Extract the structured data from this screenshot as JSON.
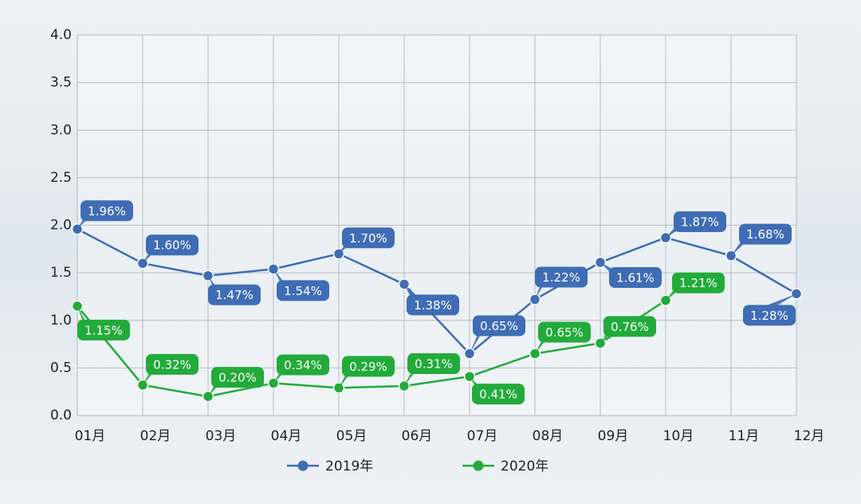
{
  "chart_data": {
    "type": "line",
    "categories": [
      "01月",
      "02月",
      "03月",
      "04月",
      "05月",
      "06月",
      "07月",
      "08月",
      "09月",
      "10月",
      "11月",
      "12月"
    ],
    "series": [
      {
        "name": "2019年",
        "color": "#3f6db5",
        "values": [
          1.96,
          1.6,
          1.47,
          1.54,
          1.7,
          1.38,
          0.65,
          1.22,
          1.61,
          1.87,
          1.68,
          1.28
        ],
        "value_labels": [
          "1.96%",
          "1.60%",
          "1.47%",
          "1.54%",
          "1.70%",
          "1.38%",
          "0.65%",
          "1.22%",
          "1.61%",
          "1.87%",
          "1.68%",
          "1.28%"
        ]
      },
      {
        "name": "2020年",
        "color": "#22ab3a",
        "values": [
          1.15,
          0.32,
          0.2,
          0.34,
          0.29,
          0.31,
          0.41,
          0.65,
          0.76,
          1.21,
          null,
          null
        ],
        "value_labels": [
          "1.15%",
          "0.32%",
          "0.20%",
          "0.34%",
          "0.29%",
          "0.31%",
          "0.41%",
          "0.65%",
          "0.76%",
          "1.21%",
          null,
          null
        ]
      }
    ],
    "ylim": [
      0,
      4
    ],
    "yticks": [
      {
        "value": 0,
        "label": "0.0"
      },
      0.5,
      {
        "value": 1,
        "label": "1.0"
      },
      1.5,
      {
        "value": 2,
        "label": "2.0"
      },
      2.5,
      {
        "value": 3,
        "label": "3.0"
      },
      3.5,
      {
        "value": 4,
        "label": "4.0"
      }
    ],
    "grid": true,
    "legend": "bottom"
  }
}
